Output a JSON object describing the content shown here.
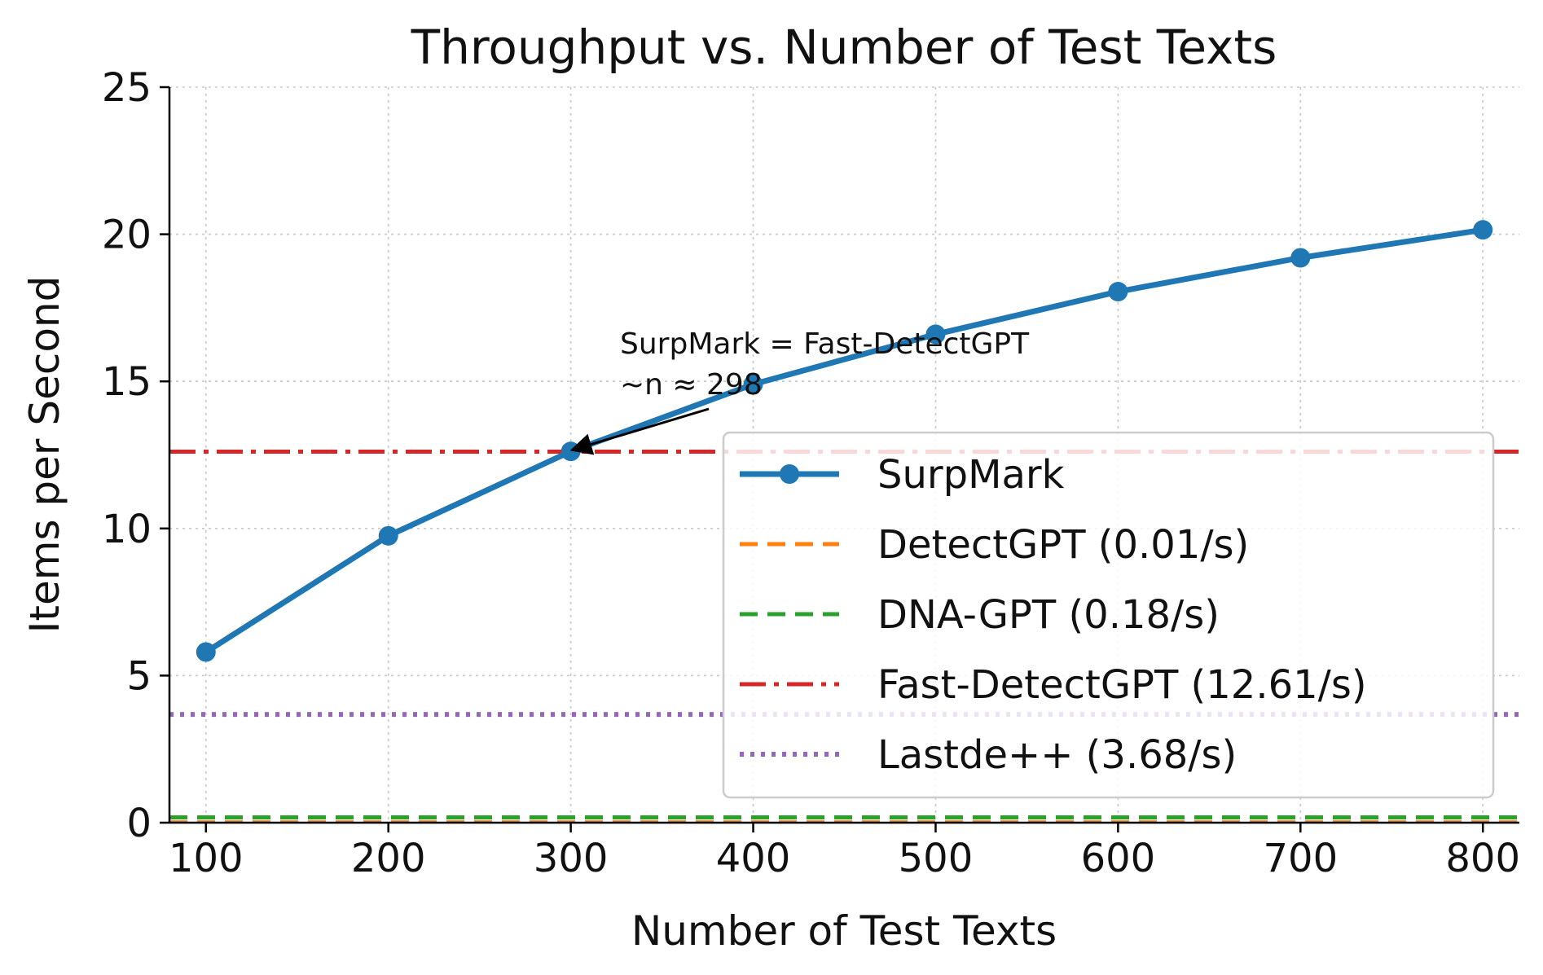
{
  "chart_data": {
    "type": "line",
    "title": "Throughput vs. Number of Test Texts",
    "xlabel": "Number of Test Texts",
    "ylabel": "Items per Second",
    "xlim": [
      80,
      820
    ],
    "ylim": [
      0,
      25
    ],
    "x_ticks": [
      100,
      200,
      300,
      400,
      500,
      600,
      700,
      800
    ],
    "y_ticks": [
      0,
      5,
      10,
      15,
      20,
      25
    ],
    "grid": true,
    "x": [
      100,
      200,
      300,
      400,
      500,
      600,
      700,
      800
    ],
    "series": [
      {
        "name": "SurpMark",
        "values": [
          5.8,
          9.75,
          12.62,
          14.9,
          16.6,
          18.05,
          19.2,
          20.15
        ],
        "color": "#1f77b4",
        "style": "solid",
        "marker": "circle"
      }
    ],
    "reference_lines": [
      {
        "name": "DetectGPT (0.01/s)",
        "value": 0.01,
        "color": "#ff7f0e",
        "style": "dashed"
      },
      {
        "name": "DNA-GPT (0.18/s)",
        "value": 0.18,
        "color": "#2ca02c",
        "style": "dashed"
      },
      {
        "name": "Fast-DetectGPT (12.61/s)",
        "value": 12.61,
        "color": "#d62728",
        "style": "dashdot"
      },
      {
        "name": "Lastde++ (3.68/s)",
        "value": 3.68,
        "color": "#9467bd",
        "style": "dotted"
      }
    ],
    "legend_position": "lower-right",
    "annotation": {
      "lines": [
        "SurpMark = Fast-DetectGPT",
        "~n ≈ 298"
      ],
      "point": {
        "x": 298,
        "y": 12.61
      }
    }
  }
}
